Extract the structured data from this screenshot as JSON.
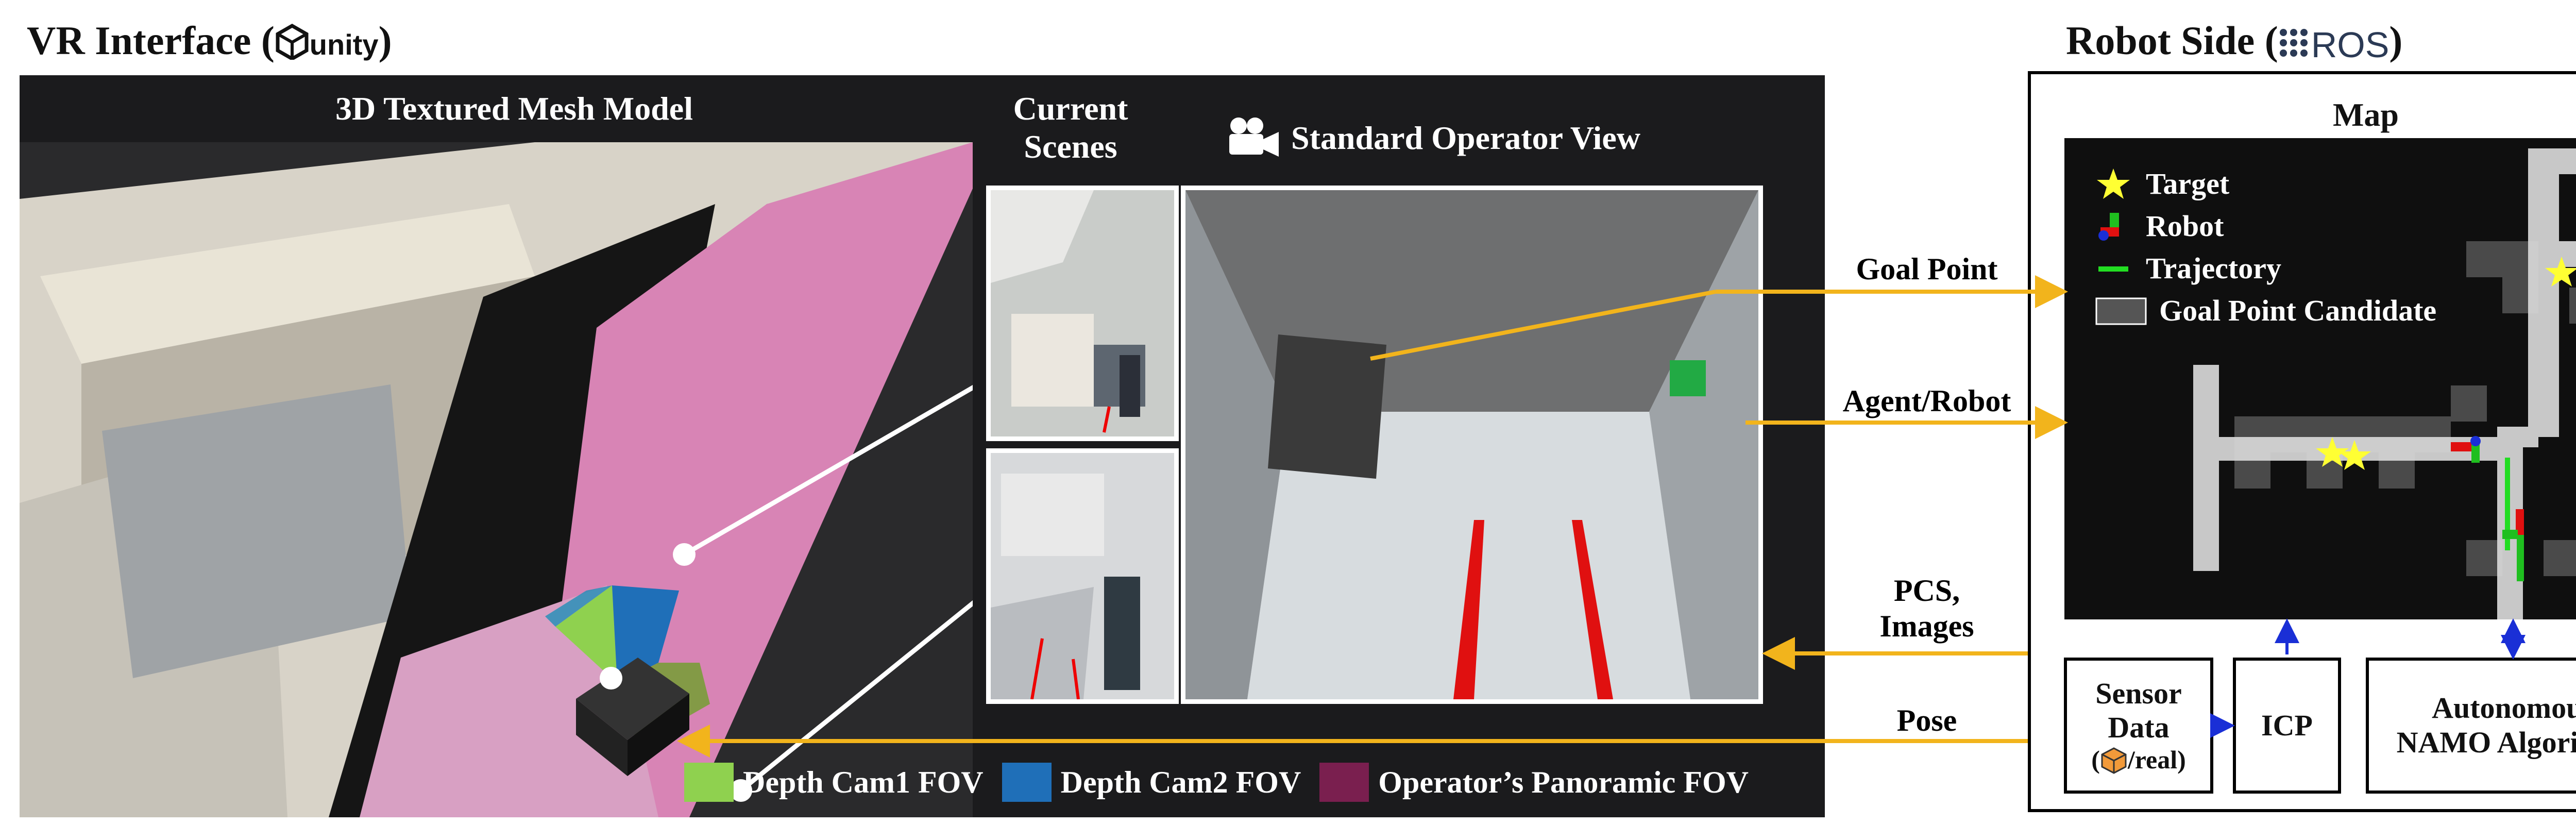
{
  "vr": {
    "title": "VR Interface (",
    "title_close": ")",
    "unity_label": "unity",
    "mesh_header": "3D Textured Mesh Model",
    "current_scenes_header": "Current\nScenes",
    "operator_view_header": "Standard Operator View",
    "legend": [
      {
        "label": "Depth Cam1 FOV",
        "color": "#8fd14f"
      },
      {
        "label": "Depth Cam2 FOV",
        "color": "#1f6fb8"
      },
      {
        "label": "Operator’s Panoramic FOV",
        "color": "#7a1f4f"
      }
    ]
  },
  "robot": {
    "title": "Robot Side (",
    "title_close": ")",
    "ros_label": "ROS",
    "map_title": "Map",
    "map_legend": [
      {
        "label": "Target",
        "icon": "star-icon",
        "color": "#ffff33"
      },
      {
        "label": "Robot",
        "icon": "robot-axes-icon",
        "color": "#1fbf1f"
      },
      {
        "label": "Trajectory",
        "icon": "trajectory-line-icon",
        "color": "#22dd22"
      },
      {
        "label": "Goal Point Candidate",
        "icon": "candidate-square-icon",
        "color": "#555555"
      }
    ],
    "blocks": {
      "sensor": "Sensor\nData",
      "sensor_sub": "/real)",
      "icp": "ICP",
      "namo": "Autonomous\nNAMO Algorithm"
    }
  },
  "arrows": {
    "goal_point": "Goal Point",
    "agent_robot": "Agent/Robot",
    "pcs_images": "PCS,\nImages",
    "pose": "Pose",
    "arrow_color": "#f2b41c",
    "block_arrow_color": "#1a2fd6"
  }
}
